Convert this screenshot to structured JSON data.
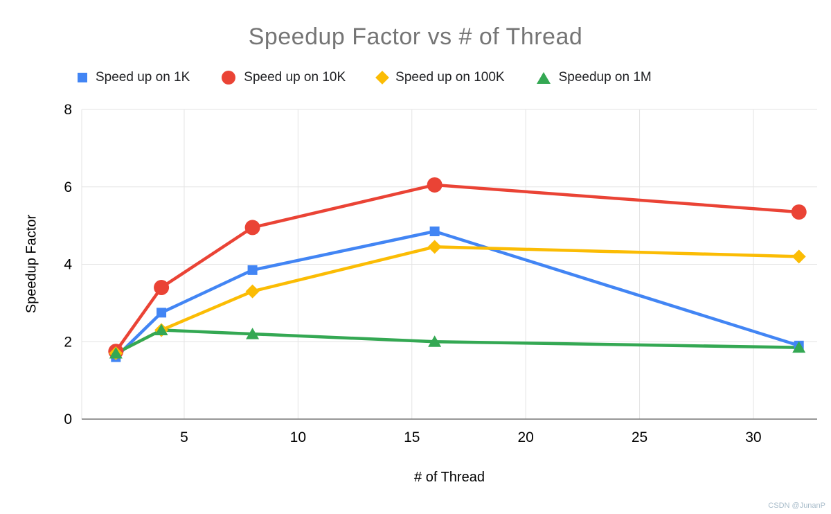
{
  "watermark": "CSDN @JunanP",
  "chart_data": {
    "type": "line",
    "title": "Speedup Factor vs # of Thread",
    "xlabel": "# of Thread",
    "ylabel": "Speedup Factor",
    "x": [
      2,
      4,
      8,
      16,
      32
    ],
    "series": [
      {
        "name": "Speed up on 1K",
        "color": "#4285F4",
        "marker": "square",
        "values": [
          1.6,
          2.75,
          3.85,
          4.85,
          1.9
        ]
      },
      {
        "name": "Speed up on 10K",
        "color": "#EA4335",
        "marker": "circle",
        "values": [
          1.75,
          3.4,
          4.95,
          6.05,
          5.35
        ]
      },
      {
        "name": "Speed up on 100K",
        "color": "#FBBC04",
        "marker": "diamond",
        "values": [
          1.7,
          2.3,
          3.3,
          4.45,
          4.2
        ]
      },
      {
        "name": "Speedup on 1M",
        "color": "#34A853",
        "marker": "triangle",
        "values": [
          1.7,
          2.3,
          2.2,
          2.0,
          1.85
        ]
      }
    ],
    "xticks": [
      5,
      10,
      15,
      20,
      25,
      30
    ],
    "yticks": [
      0,
      2,
      4,
      6,
      8
    ],
    "xlim": [
      0.5,
      32.8
    ],
    "ylim": [
      0,
      8
    ],
    "grid": true,
    "legend_position": "top",
    "gridline_color": "#e3e3e3",
    "axis_line_color": "#757575",
    "tick_label_color": "#000000",
    "title_color": "#757575"
  }
}
